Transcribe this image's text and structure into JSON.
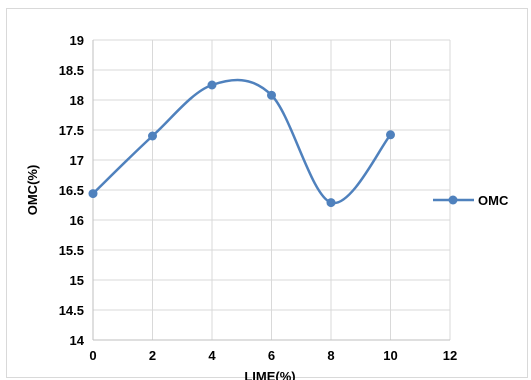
{
  "chart_data": {
    "type": "line",
    "title": "",
    "xlabel": "LIME(%)",
    "ylabel": "OMC(%)",
    "xlim": [
      0,
      12
    ],
    "ylim": [
      14,
      19
    ],
    "x_ticks": [
      "0",
      "2",
      "4",
      "6",
      "8",
      "10",
      "12"
    ],
    "y_ticks": [
      "14",
      "14.5",
      "15",
      "15.5",
      "16",
      "16.5",
      "17",
      "17.5",
      "18",
      "18.5",
      "19"
    ],
    "grid": true,
    "smooth": true,
    "legend_position": "right",
    "series": [
      {
        "name": "OMC",
        "color": "#4f81bd",
        "x": [
          0,
          2,
          4,
          6,
          8,
          10
        ],
        "y": [
          16.44,
          17.4,
          18.25,
          18.08,
          16.29,
          17.42
        ]
      }
    ]
  }
}
